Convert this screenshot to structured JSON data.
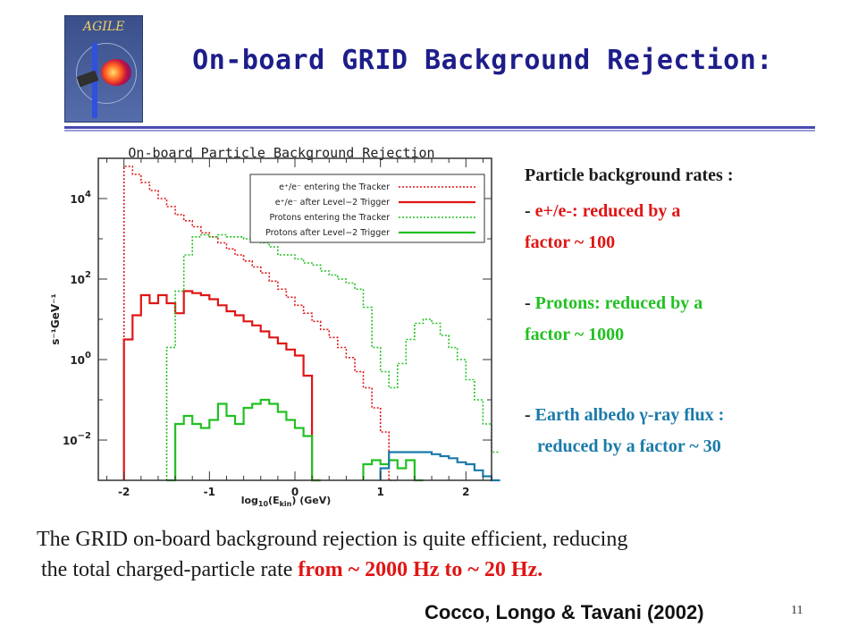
{
  "slide": {
    "logo_text": "AGILE",
    "title": "On-board GRID Background Rejection:",
    "page_number": "11",
    "citation": "Cocco, Longo & Tavani (2002)"
  },
  "notes": {
    "heading": "Particle background rates :",
    "electrons_line1_dash": "- ",
    "electrons_line1": "e+/e-:  reduced by  a",
    "electrons_line2": "factor ~ 100",
    "protons_line1_dash": "- ",
    "protons_line1": "Protons:  reduced by a",
    "protons_line2": "factor ~ 1000",
    "albedo_line1_dash": "- ",
    "albedo_line1": "Earth albedo γ-ray flux :",
    "albedo_line2": "reduced by a factor ~ 30"
  },
  "summary": {
    "line1": "The GRID on-board background rejection is quite efficient, reducing",
    "line2_prefix": "the total charged-particle rate ",
    "line2_highlight": "from ~ 2000 Hz to ~ 20 Hz."
  },
  "colors": {
    "title": "#1d1d8a",
    "electrons": "#e01515",
    "protons": "#22c022",
    "albedo": "#1a7aaa"
  },
  "chart_data": {
    "type": "line",
    "step": true,
    "title": "On-board Particle Background Rejection",
    "xlabel_prefix": "log",
    "xlabel_sub": "10",
    "xlabel_suffix": "(E",
    "xlabel_sub2": "kin",
    "xlabel_end": ")  (GeV)",
    "ylabel": "s⁻¹GeV⁻¹",
    "xlim": [
      -2.3,
      2.3
    ],
    "ylim_log10": [
      -3,
      5
    ],
    "y_scale": "log",
    "x_ticks": [
      {
        "value": -2,
        "label": "-2"
      },
      {
        "value": -1,
        "label": "-1"
      },
      {
        "value": 0,
        "label": "0"
      },
      {
        "value": 1,
        "label": "1"
      },
      {
        "value": 2,
        "label": "2"
      }
    ],
    "y_ticks": [
      {
        "exp": 4,
        "base": "10",
        "sup": "4"
      },
      {
        "exp": 2,
        "base": "10",
        "sup": "2"
      },
      {
        "exp": 0,
        "base": "10",
        "sup": "0"
      },
      {
        "exp": -2,
        "base": "10",
        "sup": "−2"
      }
    ],
    "legend_position": "top-right",
    "series": [
      {
        "name": "e⁺/e⁻ entering the Tracker",
        "color": "#e01515",
        "dash": true,
        "x": [
          -2.0,
          -1.9,
          -1.8,
          -1.7,
          -1.6,
          -1.5,
          -1.4,
          -1.3,
          -1.2,
          -1.1,
          -1.0,
          -0.9,
          -0.8,
          -0.7,
          -0.6,
          -0.5,
          -0.4,
          -0.3,
          -0.2,
          -0.1,
          0.0,
          0.1,
          0.2,
          0.3,
          0.4,
          0.5,
          0.6,
          0.7,
          0.8,
          0.9,
          1.0,
          1.1
        ],
        "y_log10": [
          4.8,
          4.6,
          4.4,
          4.2,
          4.0,
          3.8,
          3.6,
          3.45,
          3.3,
          3.15,
          3.05,
          2.9,
          2.75,
          2.6,
          2.45,
          2.3,
          2.15,
          1.95,
          1.75,
          1.55,
          1.35,
          1.15,
          0.95,
          0.75,
          0.55,
          0.3,
          0.05,
          -0.3,
          -0.7,
          -1.2,
          -1.8,
          -3.0
        ]
      },
      {
        "name": "e⁺/e⁻ after Level−2 Trigger",
        "color": "#e01515",
        "dash": false,
        "x": [
          -2.0,
          -1.9,
          -1.8,
          -1.7,
          -1.6,
          -1.5,
          -1.4,
          -1.3,
          -1.2,
          -1.1,
          -1.0,
          -0.9,
          -0.8,
          -0.7,
          -0.6,
          -0.5,
          -0.4,
          -0.3,
          -0.2,
          -0.1,
          0.0,
          0.1,
          0.2
        ],
        "y_log10": [
          0.5,
          1.1,
          1.6,
          1.4,
          1.6,
          1.4,
          1.15,
          1.7,
          1.65,
          1.6,
          1.5,
          1.35,
          1.2,
          1.1,
          0.95,
          0.85,
          0.7,
          0.55,
          0.4,
          0.25,
          0.1,
          -0.4,
          -3.0
        ]
      },
      {
        "name": "Protons entering the Tracker",
        "color": "#22c022",
        "dash": true,
        "x": [
          -1.5,
          -1.4,
          -1.3,
          -1.2,
          -1.1,
          -1.0,
          -0.9,
          -0.8,
          -0.7,
          -0.6,
          -0.5,
          -0.4,
          -0.3,
          -0.2,
          -0.1,
          0.0,
          0.1,
          0.2,
          0.3,
          0.4,
          0.5,
          0.6,
          0.7,
          0.8,
          0.9,
          1.0,
          1.1,
          1.2,
          1.3,
          1.4,
          1.5,
          1.6,
          1.7,
          1.8,
          1.9,
          2.0,
          2.1,
          2.2,
          2.3
        ],
        "y_log10": [
          0.3,
          1.7,
          2.6,
          3.05,
          3.1,
          3.05,
          3.1,
          3.05,
          3.05,
          3.0,
          3.0,
          2.9,
          2.8,
          2.6,
          2.6,
          2.5,
          2.4,
          2.35,
          2.2,
          2.1,
          2.0,
          1.9,
          1.75,
          1.3,
          0.3,
          -0.3,
          -0.7,
          -0.1,
          0.5,
          0.9,
          1.0,
          0.9,
          0.6,
          0.3,
          0.0,
          -0.5,
          -1.0,
          -1.6,
          -2.3
        ]
      },
      {
        "name": "Protons after Level−2 Trigger",
        "color": "#22c022",
        "dash": false,
        "x": [
          -1.5,
          -1.4,
          -1.3,
          -1.2,
          -1.1,
          -1.0,
          -0.9,
          -0.8,
          -0.7,
          -0.6,
          -0.5,
          -0.4,
          -0.3,
          -0.2,
          -0.1,
          0.0,
          0.1,
          0.2,
          0.8,
          0.9,
          1.0,
          1.1,
          1.2,
          1.3,
          1.4
        ],
        "y_log10": [
          -3.0,
          -1.6,
          -1.4,
          -1.6,
          -1.7,
          -1.5,
          -1.1,
          -1.4,
          -1.6,
          -1.2,
          -1.1,
          -1.0,
          -1.1,
          -1.3,
          -1.5,
          -1.7,
          -1.9,
          -3.0,
          -2.6,
          -2.5,
          -2.6,
          -2.5,
          -2.7,
          -2.5,
          -3.0
        ]
      },
      {
        "name": "",
        "color": "#1a7aaa",
        "dash": false,
        "x": [
          1.0,
          1.1,
          1.2,
          1.3,
          1.4,
          1.5,
          1.6,
          1.7,
          1.8,
          1.9,
          2.0,
          2.1,
          2.2,
          2.3
        ],
        "y_log10": [
          -2.7,
          -2.3,
          -2.3,
          -2.3,
          -2.3,
          -2.3,
          -2.35,
          -2.4,
          -2.45,
          -2.55,
          -2.6,
          -2.75,
          -2.9,
          -3.0
        ]
      }
    ]
  }
}
